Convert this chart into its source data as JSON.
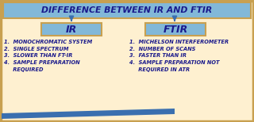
{
  "title": "DIFFERENCE BETWEEN IR AND FTIR",
  "title_box_color": "#82B8D8",
  "title_box_edge": "#C8A050",
  "header_ir": "IR",
  "header_ftir": "FTIR",
  "header_box_color": "#82B8D8",
  "header_box_edge": "#C8A050",
  "ir_points": [
    "1.  MONOCHROMATIC SYSTEM",
    "2.  SINGLE SPECTRUM",
    "3.  SLOWER THAN FT-IR",
    "4.  SAMPLE PREPARATION",
    "     REQUIRED"
  ],
  "ftir_points": [
    "1.  MICHELSON INTERFEROMETER",
    "2.  NUMBER OF SCANS",
    "3.  FASTER THAN IR",
    "4.  SAMPLE PREPARATION NOT",
    "     REQUIRED IN ATR"
  ],
  "text_color": "#1A1A8C",
  "arrow_color": "#3A6FAF",
  "bg_color": "#FEF0D0",
  "bottom_bar_color": "#3A6FAF",
  "outer_border_color": "#C8A050"
}
